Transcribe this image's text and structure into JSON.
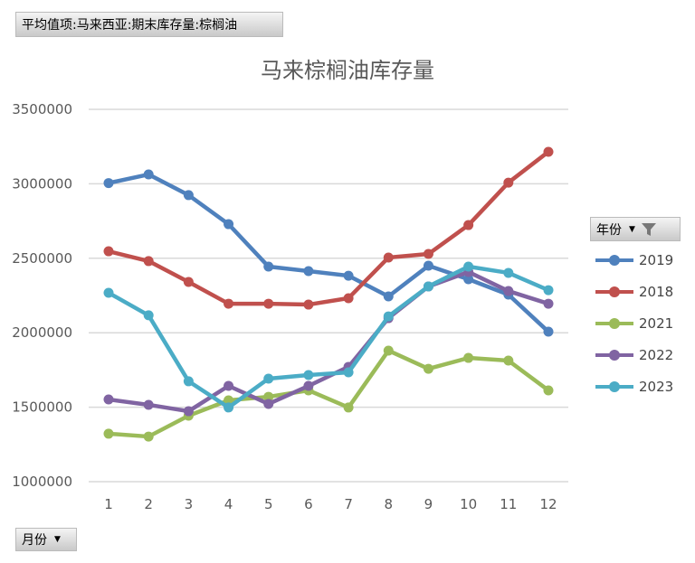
{
  "filters": {
    "value_field": "平均值项:马来西亚:期末库存量:棕榈油",
    "series_field": "年份",
    "category_field": "月份"
  },
  "chart_data": {
    "type": "line",
    "title": "马来棕榈油库存量",
    "xlabel": "",
    "ylabel": "",
    "ylim": [
      1000000,
      3500000
    ],
    "yticks": [
      "1000000",
      "1500000",
      "2000000",
      "2500000",
      "3000000",
      "3500000"
    ],
    "categories": [
      "1",
      "2",
      "3",
      "4",
      "5",
      "6",
      "7",
      "8",
      "9",
      "10",
      "11",
      "12"
    ],
    "grid": true,
    "legend": "right",
    "series": [
      {
        "name": "2019",
        "color": "#4f81bd",
        "values": [
          3005000,
          3063000,
          2924000,
          2729000,
          2444000,
          2414000,
          2383000,
          2244000,
          2450000,
          2359000,
          2256000,
          2007000
        ]
      },
      {
        "name": "2018",
        "color": "#c0504d",
        "values": [
          2547000,
          2481000,
          2341000,
          2195000,
          2195000,
          2189000,
          2232000,
          2505000,
          2529000,
          2723000,
          3008000,
          3215000
        ]
      },
      {
        "name": "2021",
        "color": "#9bbb59",
        "values": [
          1322000,
          1303000,
          1443000,
          1546000,
          1570000,
          1613000,
          1498000,
          1880000,
          1758000,
          1831000,
          1813000,
          1613000
        ]
      },
      {
        "name": "2022",
        "color": "#8064a2",
        "values": [
          1552000,
          1516000,
          1473000,
          1643000,
          1522000,
          1643000,
          1771000,
          2098000,
          2311000,
          2408000,
          2280000,
          2195000
        ]
      },
      {
        "name": "2023",
        "color": "#4bacc6",
        "values": [
          2268000,
          2117000,
          1674000,
          1498000,
          1692000,
          1716000,
          1734000,
          2110000,
          2311000,
          2444000,
          2402000,
          2286000
        ]
      }
    ]
  }
}
